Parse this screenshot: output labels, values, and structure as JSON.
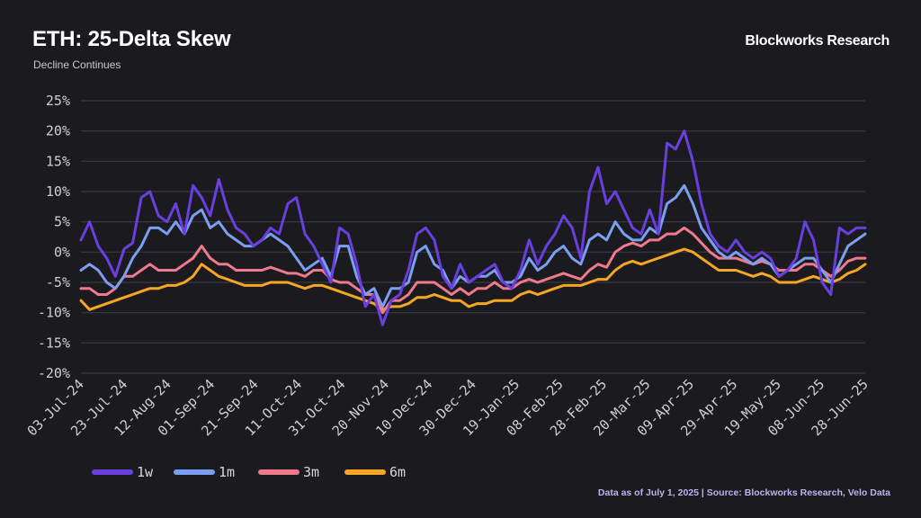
{
  "header": {
    "title": "ETH: 25-Delta Skew",
    "subtitle": "Decline Continues",
    "brand": "Blockworks Research"
  },
  "footer": {
    "source": "Data as of July 1, 2025 | Source: Blockworks Research, Velo Data"
  },
  "chart_data": {
    "type": "line",
    "title": "ETH: 25-Delta Skew",
    "subtitle": "Decline Continues",
    "xlabel": "",
    "ylabel": "",
    "ylim": [
      -20,
      25
    ],
    "yticks": [
      "25%",
      "20%",
      "15%",
      "10%",
      "5%",
      "0%",
      "-5%",
      "-10%",
      "-15%",
      "-20%"
    ],
    "ytick_values": [
      25,
      20,
      15,
      10,
      5,
      0,
      -5,
      -10,
      -15,
      -20
    ],
    "xticks": [
      "03-Jul-24",
      "23-Jul-24",
      "12-Aug-24",
      "01-Sep-24",
      "21-Sep-24",
      "11-Oct-24",
      "31-Oct-24",
      "20-Nov-24",
      "10-Dec-24",
      "30-Dec-24",
      "19-Jan-25",
      "08-Feb-25",
      "28-Feb-25",
      "20-Mar-25",
      "09-Apr-25",
      "29-Apr-25",
      "19-May-25",
      "08-Jun-25",
      "28-Jun-25"
    ],
    "x_start": "03-Jul-24",
    "x_step_days": 5,
    "grid": true,
    "legend_position": "bottom-left",
    "series": [
      {
        "name": "1w",
        "color": "#6a3fe0",
        "values": [
          2,
          5,
          1,
          -1,
          -4,
          0.5,
          1.5,
          9,
          10,
          6,
          5,
          8,
          3,
          11,
          9,
          6,
          12,
          7,
          4,
          3,
          1,
          2,
          4,
          3,
          8,
          9,
          3,
          1,
          -2,
          -5,
          4,
          3,
          -2,
          -9,
          -7,
          -12,
          -8,
          -7,
          -3,
          3,
          4,
          2,
          -4,
          -6,
          -2,
          -5,
          -4,
          -3,
          -2,
          -5,
          -6,
          -3,
          2,
          -2,
          1,
          3,
          6,
          4,
          -1,
          10,
          14,
          8,
          10,
          7,
          4,
          3,
          7,
          3,
          18,
          17,
          20,
          15,
          8,
          3,
          1,
          0,
          2,
          0,
          -1,
          0,
          -1,
          -4,
          -3,
          -1,
          5,
          2,
          -5,
          -7,
          4,
          3,
          4,
          4
        ]
      },
      {
        "name": "1m",
        "color": "#7b9ff0",
        "values": [
          -3,
          -2,
          -3,
          -5,
          -6,
          -4,
          -1,
          1,
          4,
          4,
          3,
          5,
          3,
          6,
          7,
          4,
          5,
          3,
          2,
          1,
          1,
          2,
          3,
          2,
          1,
          -1,
          -3,
          -2,
          -1,
          -4,
          1,
          1,
          -4,
          -7,
          -6,
          -9,
          -6,
          -6,
          -5,
          0,
          1,
          -2,
          -3,
          -6,
          -4,
          -5,
          -4,
          -4,
          -3,
          -5,
          -5,
          -4,
          -1,
          -3,
          -2,
          0,
          1,
          -1,
          -2,
          2,
          3,
          2,
          5,
          3,
          2,
          2,
          4,
          3,
          8,
          9,
          11,
          8,
          4,
          2,
          0,
          -1,
          0,
          -1,
          -2,
          -1,
          -2,
          -4,
          -3,
          -2,
          -1,
          -1,
          -3,
          -5,
          -2,
          1,
          2,
          3
        ]
      },
      {
        "name": "3m",
        "color": "#f07a8c",
        "values": [
          -6,
          -6,
          -7,
          -7,
          -6,
          -4,
          -4,
          -3,
          -2,
          -3,
          -3,
          -3,
          -2,
          -1,
          1,
          -1,
          -2,
          -2,
          -3,
          -3,
          -3,
          -3,
          -2.5,
          -3,
          -3.5,
          -3.5,
          -4,
          -3,
          -3,
          -4.5,
          -5,
          -5,
          -6,
          -7,
          -7,
          -10,
          -8,
          -8,
          -7,
          -5,
          -5,
          -5,
          -6,
          -7,
          -6,
          -7,
          -6,
          -6,
          -5,
          -6,
          -6,
          -5,
          -4.5,
          -5,
          -4.5,
          -4,
          -3.5,
          -4,
          -4.5,
          -3,
          -2,
          -2.5,
          0,
          1,
          1.5,
          1,
          2,
          2,
          3,
          3,
          4,
          3,
          1.5,
          0,
          -1,
          -1,
          -1,
          -1.5,
          -2,
          -1.5,
          -2,
          -3,
          -3,
          -3,
          -2,
          -2,
          -3,
          -4,
          -3,
          -1.5,
          -1,
          -1
        ]
      },
      {
        "name": "6m",
        "color": "#f5a623",
        "values": [
          -8,
          -9.5,
          -9,
          -8.5,
          -8,
          -7.5,
          -7,
          -6.5,
          -6,
          -6,
          -5.5,
          -5.5,
          -5,
          -4,
          -2,
          -3,
          -4,
          -4.5,
          -5,
          -5.5,
          -5.5,
          -5.5,
          -5,
          -5,
          -5,
          -5.5,
          -6,
          -5.5,
          -5.5,
          -6,
          -6.5,
          -7,
          -7.5,
          -8,
          -8.5,
          -9.5,
          -9,
          -9,
          -8.5,
          -7.5,
          -7.5,
          -7,
          -7.5,
          -8,
          -8,
          -9,
          -8.5,
          -8.5,
          -8,
          -8,
          -8,
          -7,
          -6.5,
          -7,
          -6.5,
          -6,
          -5.5,
          -5.5,
          -5.5,
          -5,
          -4.5,
          -4.5,
          -3,
          -2,
          -1.5,
          -2,
          -1.5,
          -1,
          -0.5,
          0,
          0.5,
          0,
          -1,
          -2,
          -3,
          -3,
          -3,
          -3.5,
          -4,
          -3.5,
          -4,
          -5,
          -5,
          -5,
          -4.5,
          -4,
          -4.5,
          -5,
          -4.5,
          -3.5,
          -3,
          -2
        ]
      }
    ]
  }
}
